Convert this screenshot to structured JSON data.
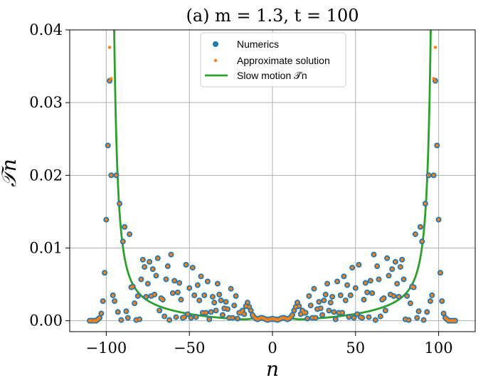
{
  "chart_data": {
    "type": "scatter",
    "title": "(a)    m = 1.3,  t = 100",
    "xlabel": "n",
    "ylabel": "𝒯n",
    "xlim": [
      -122,
      122
    ],
    "ylim": [
      -0.0015,
      0.04
    ],
    "xticks": [
      -100,
      -50,
      0,
      50,
      100
    ],
    "xtick_labels": [
      "−100",
      "−50",
      "0",
      "50",
      "100"
    ],
    "yticks": [
      0.0,
      0.01,
      0.02,
      0.03,
      0.04
    ],
    "ytick_labels": [
      "0.00",
      "0.01",
      "0.02",
      "0.03",
      "0.04"
    ],
    "grid": true,
    "legend_position": "top-center",
    "legend": [
      "Numerics",
      "Approximate solution",
      "Slow motion 𝒯̄n"
    ],
    "colors": {
      "numerics": "#1f77b4",
      "approx": "#ff7f0e",
      "slow": "#2ca02c"
    },
    "series": [
      {
        "name": "Numerics",
        "style": "dots-large",
        "points": [
          [
            -110,
            0.0
          ],
          [
            -109,
            0.0
          ],
          [
            -108,
            0.0
          ],
          [
            -107,
            0.0
          ],
          [
            -106,
            0.0
          ],
          [
            -105,
            0.0002
          ],
          [
            -104,
            0.0004
          ],
          [
            -103,
            0.001
          ],
          [
            -102,
            0.0027
          ],
          [
            -101,
            0.0066
          ],
          [
            -100,
            0.0139
          ],
          [
            -99,
            0.0241
          ],
          [
            -98,
            0.033
          ],
          [
            -97,
            0.02
          ],
          [
            -96,
            0.0035
          ],
          [
            -95,
            0.0027
          ],
          [
            -94,
            0.02
          ],
          [
            -93,
            0.0012
          ],
          [
            -92,
            0.0161
          ],
          [
            -91,
            0.0001
          ],
          [
            -90,
            0.0109
          ],
          [
            -89,
            0.0129
          ],
          [
            -88,
            0.0013
          ],
          [
            -87,
            0.0004
          ],
          [
            -86,
            0.0119
          ],
          [
            -85,
            0.0046
          ],
          [
            -84,
            0.0047
          ],
          [
            -83,
            0.0024
          ],
          [
            -82,
            0.0001
          ],
          [
            -81,
            0.0034
          ],
          [
            -80,
            0.0002
          ],
          [
            -79,
            0.0057
          ],
          [
            -78,
            0.0084
          ],
          [
            -77,
            0.0074
          ],
          [
            -76,
            0.0033
          ],
          [
            -75,
            0.0051
          ],
          [
            -74,
            0.0081
          ],
          [
            -73,
            0.0034
          ],
          [
            -72,
            0.0071
          ],
          [
            -71,
            0.0036
          ],
          [
            -70,
            0.0062
          ],
          [
            -69,
            0.0086
          ],
          [
            -68,
            0.0014
          ],
          [
            -67,
            0.0031
          ],
          [
            -66,
            0.0029
          ],
          [
            -65,
            0.0006
          ],
          [
            -64,
            0.0057
          ],
          [
            -63,
            0.0075
          ],
          [
            -62,
            0.0001
          ],
          [
            -61,
            0.0091
          ],
          [
            -60,
            0.0038
          ],
          [
            -59,
            0.0055
          ],
          [
            -58,
            0.0005
          ],
          [
            -57,
            0.0039
          ],
          [
            -56,
            0.0052
          ],
          [
            -55,
            0.0029
          ],
          [
            -54,
            0.0004
          ],
          [
            -53,
            0.0005
          ],
          [
            -52,
            0.0077
          ],
          [
            -51,
            0.0009
          ],
          [
            -50,
            0.0045
          ],
          [
            -49,
            0.0004
          ],
          [
            -48,
            0.0073
          ],
          [
            -47,
            0.0035
          ],
          [
            -46,
            0.0005
          ],
          [
            -45,
            0.0049
          ],
          [
            -44,
            0.0028
          ],
          [
            -43,
            0.0061
          ],
          [
            -42,
            0.0011
          ],
          [
            -41,
            0.0035
          ],
          [
            -40,
            0.0011
          ],
          [
            -39,
            0.0054
          ],
          [
            -38,
            0.0002
          ],
          [
            -37,
            0.0012
          ],
          [
            -36,
            0.0033
          ],
          [
            -35,
            0.0025
          ],
          [
            -34,
            0.0014
          ],
          [
            -33,
            0.0051
          ],
          [
            -32,
            0.0036
          ],
          [
            -31,
            0.0028
          ],
          [
            -30,
            0.0008
          ],
          [
            -29,
            0.0017
          ],
          [
            -28,
            0.0026
          ],
          [
            -27,
            0.0016
          ],
          [
            -26,
            0.0004
          ],
          [
            -25,
            0.0044
          ],
          [
            -24,
            0.0004
          ],
          [
            -23,
            0.0021
          ],
          [
            -22,
            0.0034
          ],
          [
            -21,
            0.0003
          ],
          [
            -20,
            0.0011
          ],
          [
            -19,
            0.0011
          ],
          [
            -18,
            0.0014
          ],
          [
            -17,
            0.0009
          ],
          [
            -16,
            0.002
          ],
          [
            -15,
            0.0025
          ],
          [
            -14,
            0.0019
          ],
          [
            -13,
            0.0014
          ],
          [
            -12,
            0.0008
          ],
          [
            -11,
            0.0005
          ],
          [
            -10,
            0.0003
          ],
          [
            -9,
            0.0002
          ],
          [
            -8,
            0.0003
          ],
          [
            -7,
            0.0004
          ],
          [
            -6,
            0.0004
          ],
          [
            -5,
            0.0003
          ],
          [
            -4,
            0.0002
          ],
          [
            -3,
            0.0001
          ],
          [
            -2,
            0.0002
          ],
          [
            -1,
            0.0002
          ],
          [
            0,
            0.0003
          ],
          [
            1,
            0.0002
          ],
          [
            2,
            0.0002
          ],
          [
            3,
            0.0001
          ],
          [
            4,
            0.0002
          ],
          [
            5,
            0.0003
          ],
          [
            6,
            0.0004
          ],
          [
            7,
            0.0004
          ],
          [
            8,
            0.0003
          ],
          [
            9,
            0.0002
          ],
          [
            10,
            0.0003
          ],
          [
            11,
            0.0005
          ],
          [
            12,
            0.0008
          ],
          [
            13,
            0.0014
          ],
          [
            14,
            0.0019
          ],
          [
            15,
            0.0025
          ],
          [
            16,
            0.002
          ],
          [
            17,
            0.0009
          ],
          [
            18,
            0.0014
          ],
          [
            19,
            0.0011
          ],
          [
            20,
            0.0011
          ],
          [
            21,
            0.0003
          ],
          [
            22,
            0.0034
          ],
          [
            23,
            0.0021
          ],
          [
            24,
            0.0004
          ],
          [
            25,
            0.0044
          ],
          [
            26,
            0.0004
          ],
          [
            27,
            0.0016
          ],
          [
            28,
            0.0026
          ],
          [
            29,
            0.0017
          ],
          [
            30,
            0.0008
          ],
          [
            31,
            0.0028
          ],
          [
            32,
            0.0036
          ],
          [
            33,
            0.0051
          ],
          [
            34,
            0.0014
          ],
          [
            35,
            0.0025
          ],
          [
            36,
            0.0033
          ],
          [
            37,
            0.0012
          ],
          [
            38,
            0.0002
          ],
          [
            39,
            0.0054
          ],
          [
            40,
            0.0011
          ],
          [
            41,
            0.0035
          ],
          [
            42,
            0.0011
          ],
          [
            43,
            0.0061
          ],
          [
            44,
            0.0028
          ],
          [
            45,
            0.0049
          ],
          [
            46,
            0.0005
          ],
          [
            47,
            0.0035
          ],
          [
            48,
            0.0073
          ],
          [
            49,
            0.0004
          ],
          [
            50,
            0.0045
          ],
          [
            51,
            0.0009
          ],
          [
            52,
            0.0077
          ],
          [
            53,
            0.0005
          ],
          [
            54,
            0.0004
          ],
          [
            55,
            0.0029
          ],
          [
            56,
            0.0052
          ],
          [
            57,
            0.0039
          ],
          [
            58,
            0.0005
          ],
          [
            59,
            0.0055
          ],
          [
            60,
            0.0038
          ],
          [
            61,
            0.0091
          ],
          [
            62,
            0.0001
          ],
          [
            63,
            0.0075
          ],
          [
            64,
            0.0057
          ],
          [
            65,
            0.0006
          ],
          [
            66,
            0.0029
          ],
          [
            67,
            0.0031
          ],
          [
            68,
            0.0014
          ],
          [
            69,
            0.0086
          ],
          [
            70,
            0.0062
          ],
          [
            71,
            0.0036
          ],
          [
            72,
            0.0071
          ],
          [
            73,
            0.0034
          ],
          [
            74,
            0.0081
          ],
          [
            75,
            0.0051
          ],
          [
            76,
            0.0033
          ],
          [
            77,
            0.0074
          ],
          [
            78,
            0.0084
          ],
          [
            79,
            0.0057
          ],
          [
            80,
            0.0002
          ],
          [
            81,
            0.0034
          ],
          [
            82,
            0.0001
          ],
          [
            83,
            0.0024
          ],
          [
            84,
            0.0047
          ],
          [
            85,
            0.0046
          ],
          [
            86,
            0.0119
          ],
          [
            87,
            0.0004
          ],
          [
            88,
            0.0013
          ],
          [
            89,
            0.0129
          ],
          [
            90,
            0.0109
          ],
          [
            91,
            0.0001
          ],
          [
            92,
            0.0161
          ],
          [
            93,
            0.0012
          ],
          [
            94,
            0.02
          ],
          [
            95,
            0.0027
          ],
          [
            96,
            0.0035
          ],
          [
            97,
            0.02
          ],
          [
            98,
            0.033
          ],
          [
            99,
            0.0241
          ],
          [
            100,
            0.0139
          ],
          [
            101,
            0.0066
          ],
          [
            102,
            0.0027
          ],
          [
            103,
            0.001
          ],
          [
            104,
            0.0004
          ],
          [
            105,
            0.0002
          ],
          [
            106,
            0.0
          ],
          [
            107,
            0.0
          ],
          [
            108,
            0.0
          ],
          [
            109,
            0.0
          ],
          [
            110,
            0.0
          ]
        ]
      },
      {
        "name": "Approximate solution",
        "style": "dots-small",
        "same_points_as": "Numerics",
        "extra_points": [
          [
            -98,
            0.0376
          ],
          [
            98,
            0.0376
          ],
          [
            -97,
            0.0333
          ],
          [
            97,
            0.0333
          ]
        ]
      },
      {
        "name": "Slow motion 𝒯̄n",
        "style": "line",
        "formula_note": "diverges at |n| = 100, nonzero dip near n = 0",
        "x_range": [
          -100,
          100
        ]
      }
    ]
  }
}
